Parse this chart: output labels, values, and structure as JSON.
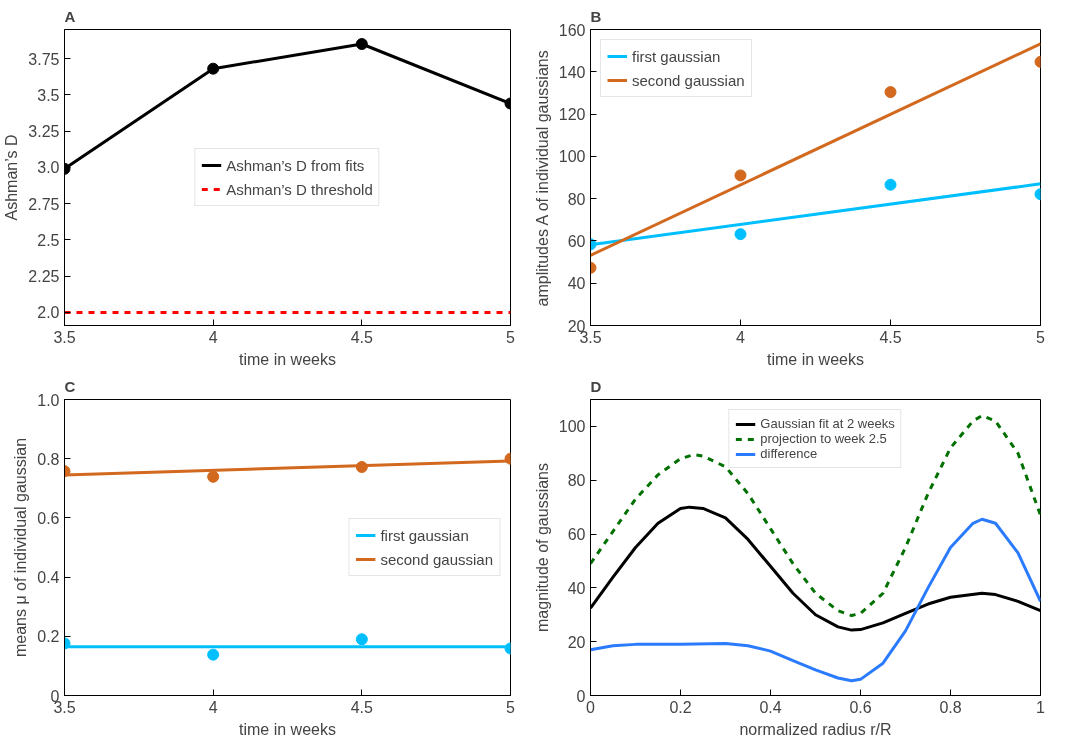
{
  "chart_data": [
    {
      "type": "line",
      "title": "A",
      "xlabel": "time in weeks",
      "ylabel": "Ashman’s D",
      "marker": "circle",
      "grid": false,
      "legend": "center",
      "x": [
        3.5,
        4,
        4.5,
        5
      ],
      "series": [
        {
          "name": "Ashman’s D from fits",
          "color": "#000000",
          "values": [
            2.99,
            3.68,
            3.85,
            3.44
          ]
        }
      ],
      "ref_lines": [
        {
          "axis": "y",
          "value": 2.0,
          "label": "Ashman’s D threshold",
          "color": "#ff0000",
          "line_style": "dashed"
        }
      ],
      "xlim": [
        3.5,
        5
      ],
      "xticks": [
        3.5,
        4,
        4.5,
        5
      ],
      "ylim": [
        1.91,
        3.95
      ],
      "yticks": [
        {
          "value": 2,
          "label": "2.0"
        },
        2.25,
        2.5,
        2.75,
        {
          "value": 3,
          "label": "3.0"
        },
        3.25,
        3.5,
        3.75
      ]
    },
    {
      "type": "scatter",
      "title": "B",
      "xlabel": "time in weeks",
      "ylabel": "amplitudes A of individual gaussians",
      "grid": false,
      "legend": "top left",
      "x": [
        3.5,
        4,
        4.5,
        5
      ],
      "series": [
        {
          "color": "#00bfff",
          "values": [
            58.4,
            63.2,
            86.6,
            82.1
          ]
        },
        {
          "color": "#d2691e",
          "values": [
            47.3,
            91,
            130.4,
            144.7
          ]
        },
        {
          "name": "first gaussian",
          "type": "line",
          "color": "#00bfff",
          "x": [
            3.5,
            5
          ],
          "values": [
            58.2,
            87
          ]
        },
        {
          "name": "second gaussian",
          "type": "line",
          "color": "#d2691e",
          "x": [
            3.5,
            5
          ],
          "values": [
            53.2,
            153.2
          ]
        }
      ],
      "xlim": [
        3.5,
        5
      ],
      "xticks": [
        3.5,
        4,
        4.5,
        5
      ],
      "ylim": [
        20,
        160
      ],
      "yticks": [
        20,
        40,
        60,
        80,
        100,
        120,
        140,
        160
      ]
    },
    {
      "type": "scatter",
      "title": "C",
      "xlabel": "time in weeks",
      "ylabel": "means μ of individual gaussian",
      "grid": false,
      "legend": "right",
      "x": [
        3.5,
        4,
        4.5,
        5
      ],
      "series": [
        {
          "color": "#00bfff",
          "values": [
            0.176,
            0.138,
            0.19,
            0.159
          ]
        },
        {
          "color": "#d2691e",
          "values": [
            0.758,
            0.739,
            0.772,
            0.8
          ]
        },
        {
          "name": "first gaussian",
          "type": "line",
          "color": "#00bfff",
          "x": [
            3.5,
            5
          ],
          "values": [
            0.165,
            0.165
          ]
        },
        {
          "name": "second gaussian",
          "type": "line",
          "color": "#d2691e",
          "x": [
            3.5,
            5
          ],
          "values": [
            0.745,
            0.792
          ]
        }
      ],
      "xlim": [
        3.5,
        5
      ],
      "xticks": [
        3.5,
        4,
        4.5,
        5
      ],
      "ylim": [
        0,
        1
      ],
      "yticks": [
        0,
        0.2,
        0.4,
        0.6,
        0.8,
        {
          "value": 1,
          "label": "1.0"
        }
      ]
    },
    {
      "type": "line",
      "title": "D",
      "xlabel": "normalized radius r/R",
      "ylabel": "magnitude of gaussians",
      "grid": false,
      "legend": "top",
      "marker": "none",
      "series": [
        {
          "name": "Gaussian fit at 2 weeks",
          "color": "#000000",
          "x": [
            0,
            0.05,
            0.1,
            0.15,
            0.2,
            0.22,
            0.25,
            0.3,
            0.35,
            0.4,
            0.45,
            0.5,
            0.55,
            0.58,
            0.6,
            0.65,
            0.7,
            0.75,
            0.8,
            0.87,
            0.9,
            0.95,
            1
          ],
          "values": [
            32.5,
            44,
            55,
            64,
            69.5,
            70,
            69.5,
            66,
            58,
            48,
            38,
            30,
            25.5,
            24.3,
            24.5,
            27,
            30.5,
            34,
            36.5,
            38,
            37.5,
            35,
            31.5
          ]
        },
        {
          "name": "projection to week 2.5",
          "color": "#007000",
          "line_style": "dashed",
          "x": [
            0,
            0.05,
            0.1,
            0.15,
            0.2,
            0.23,
            0.25,
            0.3,
            0.35,
            0.4,
            0.45,
            0.5,
            0.55,
            0.58,
            0.6,
            0.65,
            0.7,
            0.75,
            0.8,
            0.85,
            0.87,
            0.9,
            0.95,
            1
          ],
          "values": [
            49,
            61,
            73,
            82,
            88,
            89.5,
            89,
            85,
            75,
            62,
            49,
            38,
            31.5,
            29.7,
            30.5,
            38,
            55,
            75,
            92,
            102,
            104,
            102,
            90,
            67
          ]
        },
        {
          "name": "difference",
          "color": "#2b7bff",
          "x": [
            0,
            0.05,
            0.1,
            0.2,
            0.3,
            0.35,
            0.4,
            0.45,
            0.5,
            0.55,
            0.58,
            0.6,
            0.65,
            0.7,
            0.75,
            0.8,
            0.85,
            0.87,
            0.9,
            0.95,
            1
          ],
          "values": [
            17,
            18.5,
            19,
            19,
            19.3,
            18.5,
            16.5,
            13,
            9.5,
            6.5,
            5.5,
            6,
            12,
            24,
            40,
            55,
            64,
            65.5,
            64,
            53,
            35
          ]
        }
      ],
      "xlim": [
        0,
        1
      ],
      "xticks": [
        0,
        0.2,
        0.4,
        0.6,
        0.8,
        1
      ],
      "ylim": [
        0,
        110
      ],
      "yticks": [
        0,
        20,
        40,
        60,
        80,
        100
      ]
    }
  ]
}
